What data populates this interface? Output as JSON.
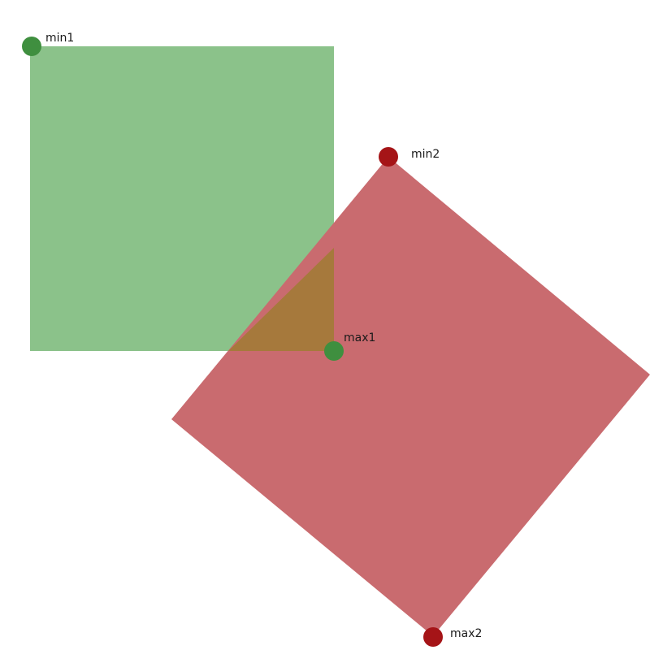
{
  "colors": {
    "green_fill": "#8bc28a",
    "green_point": "#3f8f3f",
    "red_fill": "#c96b6f",
    "red_point": "#a51417",
    "overlap_fill": "#a6793c"
  },
  "points": {
    "min1": {
      "label": "min1"
    },
    "max1": {
      "label": "max1"
    },
    "min2": {
      "label": "min2"
    },
    "max2": {
      "label": "max2"
    }
  }
}
